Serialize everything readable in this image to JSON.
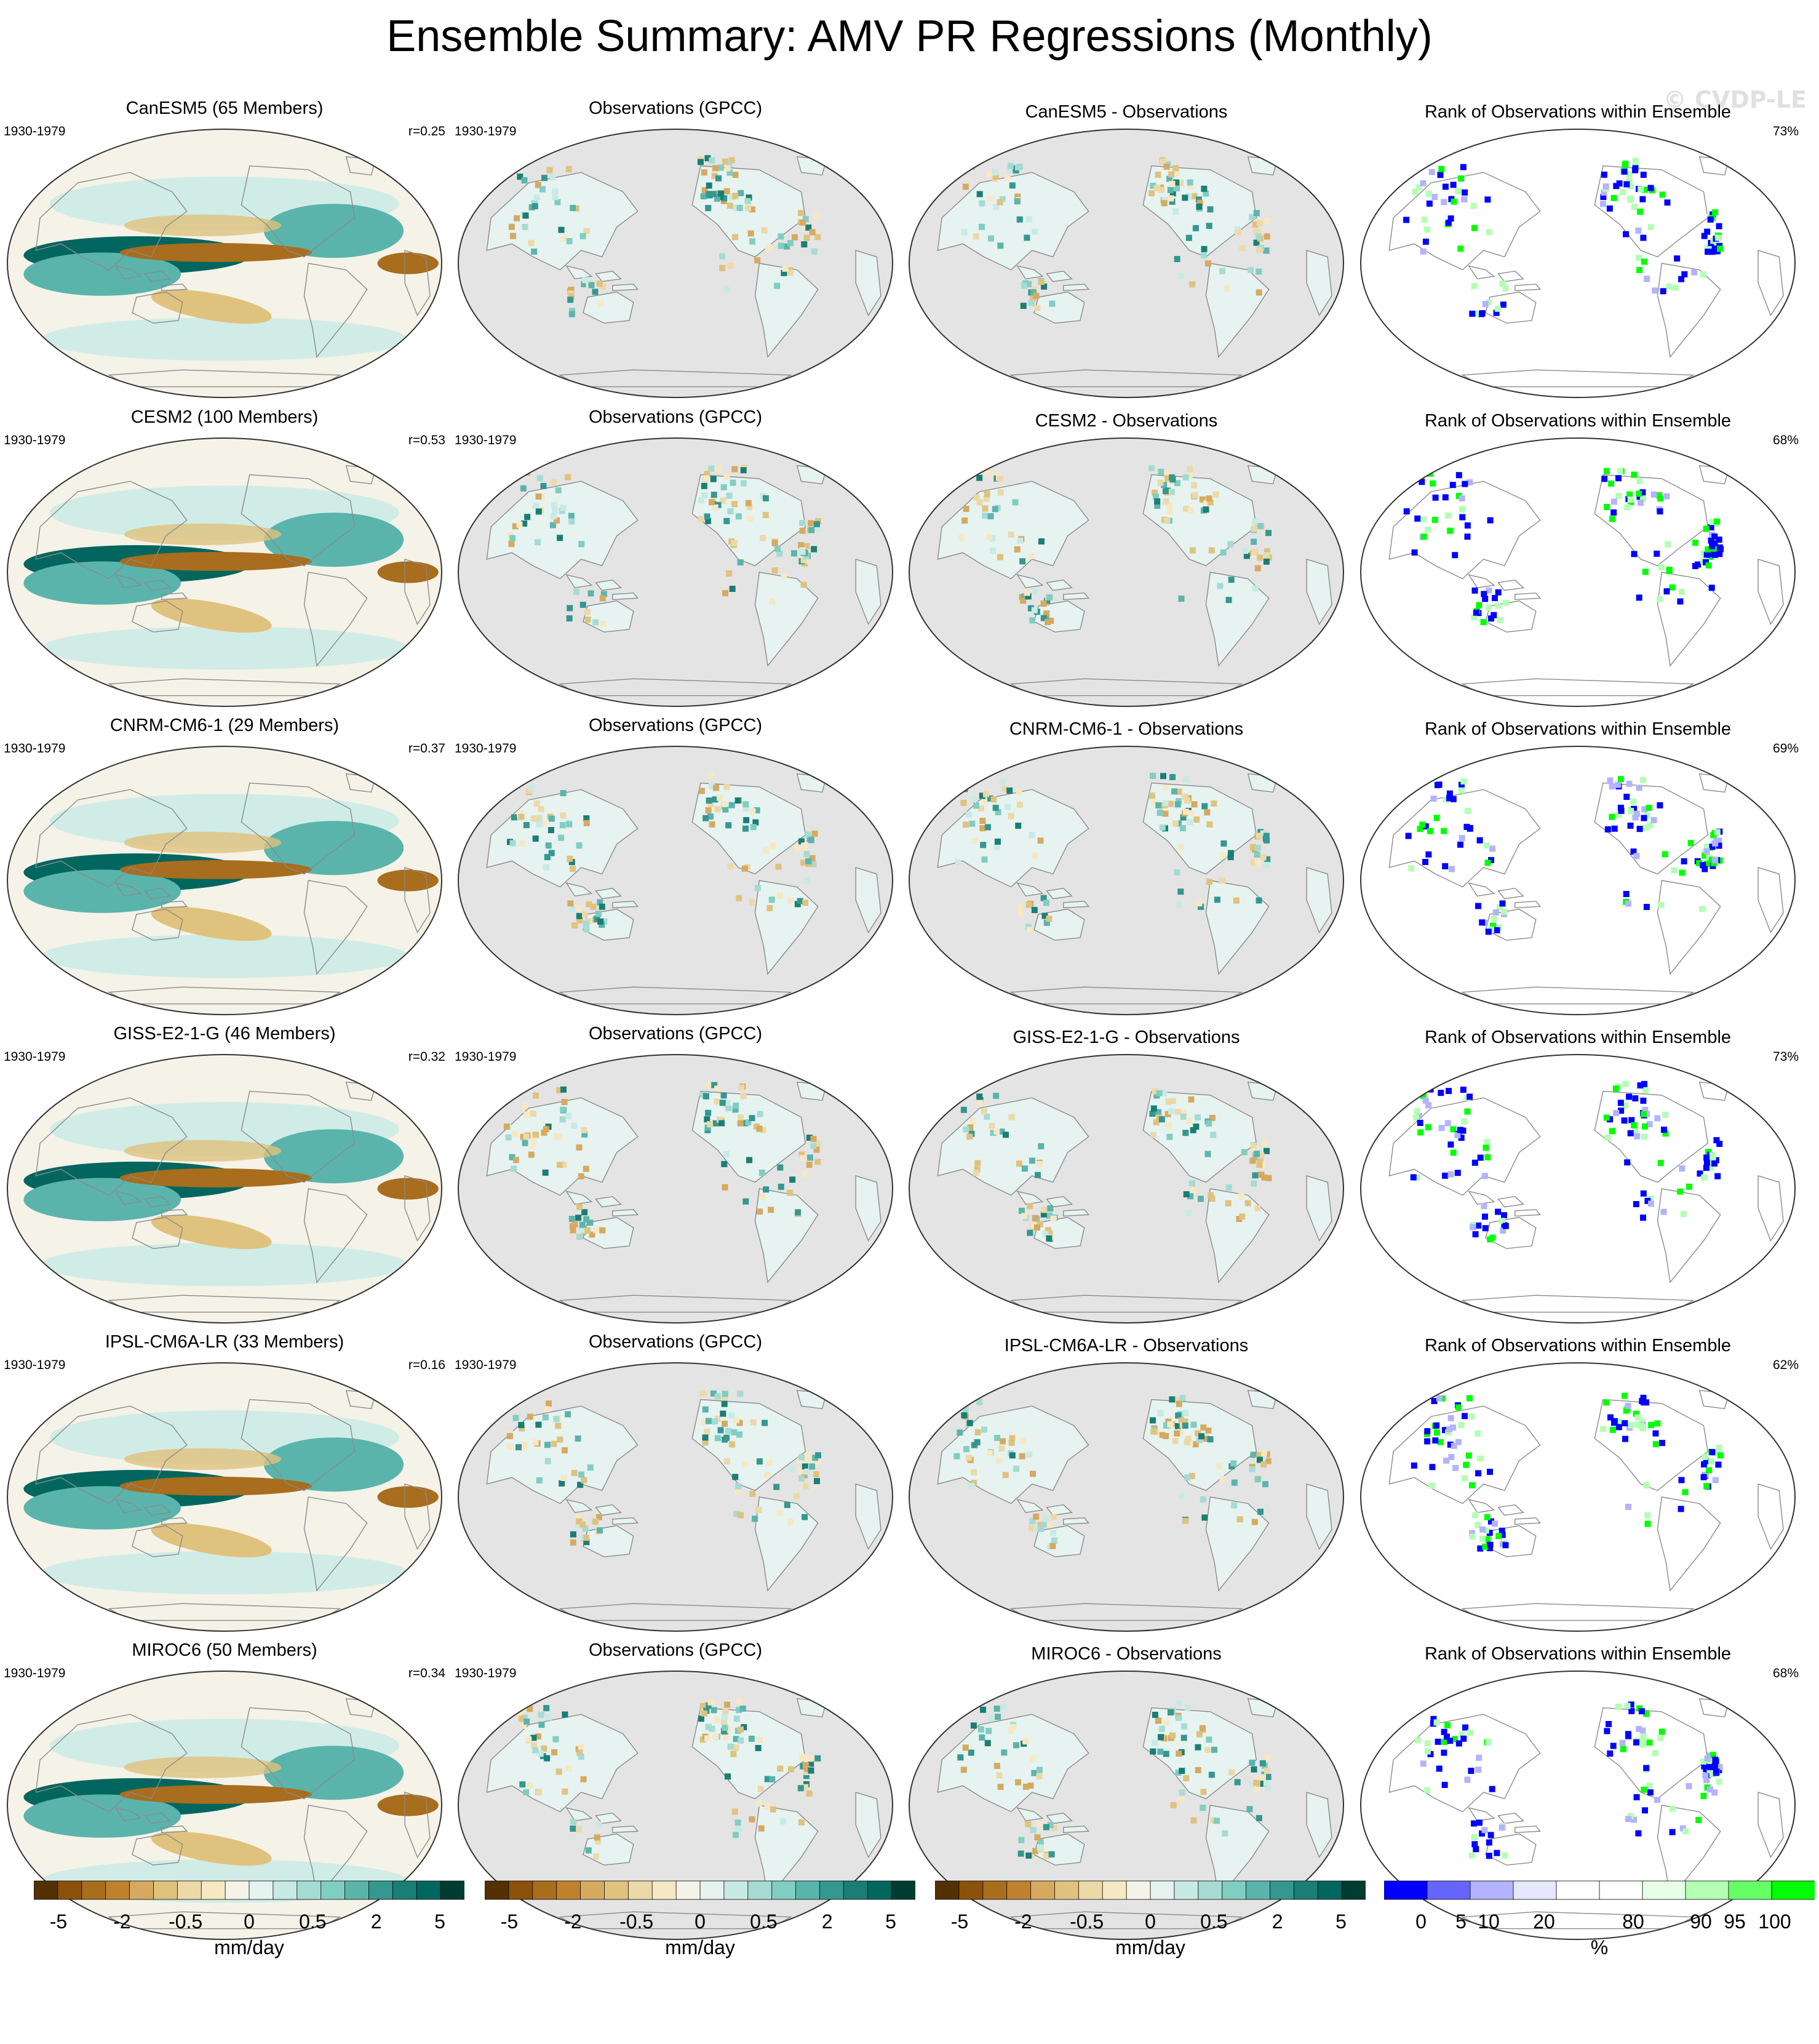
{
  "title": "Ensemble Summary: AMV PR Regressions (Monthly)",
  "watermark": "© CVDP-LE",
  "period": "1930-1979",
  "rows": [
    {
      "model": "CanESM5",
      "model_title": "CanESM5 (65 Members)",
      "corr": "r=0.25",
      "obs_title": "Observations (GPCC)",
      "diff_title": "CanESM5 - Observations",
      "rank_title": "Rank of Observations within Ensemble",
      "rank_pct": "73%"
    },
    {
      "model": "CESM2",
      "model_title": "CESM2 (100 Members)",
      "corr": "r=0.53",
      "obs_title": "Observations (GPCC)",
      "diff_title": "CESM2 - Observations",
      "rank_title": "Rank of Observations within Ensemble",
      "rank_pct": "68%"
    },
    {
      "model": "CNRM-CM6-1",
      "model_title": "CNRM-CM6-1 (29 Members)",
      "corr": "r=0.37",
      "obs_title": "Observations (GPCC)",
      "diff_title": "CNRM-CM6-1 - Observations",
      "rank_title": "Rank of Observations within Ensemble",
      "rank_pct": "69%"
    },
    {
      "model": "GISS-E2-1-G",
      "model_title": "GISS-E2-1-G (46 Members)",
      "corr": "r=0.32",
      "obs_title": "Observations (GPCC)",
      "diff_title": "GISS-E2-1-G - Observations",
      "rank_title": "Rank of Observations within Ensemble",
      "rank_pct": "73%"
    },
    {
      "model": "IPSL-CM6A-LR",
      "model_title": "IPSL-CM6A-LR (33 Members)",
      "corr": "r=0.16",
      "obs_title": "Observations (GPCC)",
      "diff_title": "IPSL-CM6A-LR - Observations",
      "rank_title": "Rank of Observations within Ensemble",
      "rank_pct": "62%"
    },
    {
      "model": "MIROC6",
      "model_title": "MIROC6 (50 Members)",
      "corr": "r=0.34",
      "obs_title": "Observations (GPCC)",
      "diff_title": "MIROC6 - Observations",
      "rank_title": "Rank of Observations within Ensemble",
      "rank_pct": "68%"
    }
  ],
  "colorbars": {
    "pr": {
      "unit": "mm/day",
      "ticks": [
        "-5",
        "-2",
        "-0.5",
        "0",
        "0.5",
        "2",
        "5"
      ],
      "colors": [
        "#543005",
        "#8c510a",
        "#a86d1d",
        "#bf812d",
        "#d5aa60",
        "#dfc27d",
        "#ecd9a8",
        "#f6e8c3",
        "#f5f2e8",
        "#e6f3f1",
        "#c7eae5",
        "#a5dbd2",
        "#80cdc1",
        "#5ab4ac",
        "#35978f",
        "#1a7e75",
        "#01665e",
        "#003c30"
      ]
    },
    "rank": {
      "unit": "%",
      "ticks": [
        "0",
        "5",
        "10",
        "20",
        "80",
        "90",
        "95",
        "100"
      ],
      "colors": [
        "#0000ff",
        "#6666ff",
        "#b3b3ff",
        "#e6e6ff",
        "#ffffff",
        "#ffffff",
        "#e6ffe6",
        "#b3ffb3",
        "#66ff66",
        "#00ff00"
      ]
    }
  },
  "map_colors": {
    "land_missing": "#e4e4e4",
    "coast": "#8a8a8a",
    "ocean_bg": "#f5f2e8"
  }
}
